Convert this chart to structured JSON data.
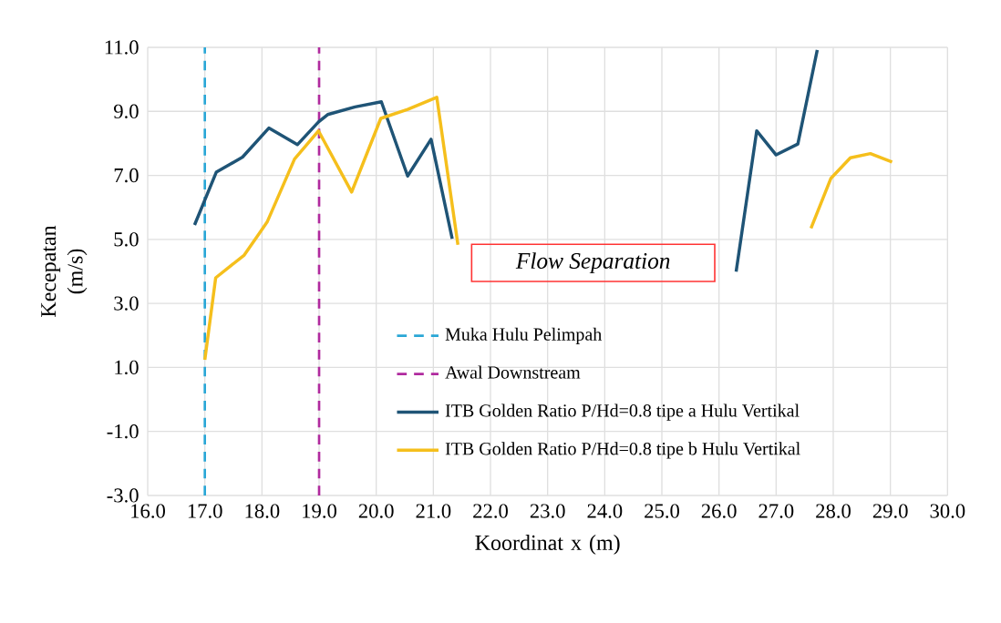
{
  "chart_data": {
    "type": "line",
    "xlabel": "Koordinat x (m)",
    "ylabel": "Kecepatan (m/s)",
    "xlim": [
      16,
      30
    ],
    "ylim": [
      -3,
      11
    ],
    "xticks": [
      {
        "value": 16,
        "label": "16.0"
      },
      {
        "value": 17,
        "label": "17.0"
      },
      {
        "value": 18,
        "label": "18.0"
      },
      {
        "value": 19,
        "label": "19.0"
      },
      {
        "value": 20,
        "label": "20.0"
      },
      {
        "value": 21,
        "label": "21.0"
      },
      {
        "value": 22,
        "label": "22.0"
      },
      {
        "value": 23,
        "label": "23.0"
      },
      {
        "value": 24,
        "label": "24.0"
      },
      {
        "value": 25,
        "label": "25.0"
      },
      {
        "value": 26,
        "label": "26.0"
      },
      {
        "value": 27,
        "label": "27.0"
      },
      {
        "value": 28,
        "label": "28.0"
      },
      {
        "value": 29,
        "label": "29.0"
      },
      {
        "value": 30,
        "label": "30.0"
      }
    ],
    "yticks": [
      {
        "value": -3,
        "label": "-3.0"
      },
      {
        "value": -1,
        "label": "-1.0"
      },
      {
        "value": 1,
        "label": "1.0"
      },
      {
        "value": 3,
        "label": "3.0"
      },
      {
        "value": 5,
        "label": "5.0"
      },
      {
        "value": 7,
        "label": "7.0"
      },
      {
        "value": 9,
        "label": "9.0"
      },
      {
        "value": 11,
        "label": "11.0"
      }
    ],
    "grid": true,
    "legend": "bottom right",
    "marker": "none",
    "line_style": "solid",
    "series": [
      {
        "name": "Muka Hulu Pelimpah",
        "color": "#2aa7d6",
        "line_style": "dashed",
        "x": [
          17,
          17
        ],
        "values": [
          -3,
          11
        ]
      },
      {
        "name": "Awal Downstream",
        "color": "#b02a9e",
        "line_style": "dashed",
        "x": [
          19,
          19
        ],
        "values": [
          -3,
          11
        ]
      },
      {
        "name": "ITB Golden Ratio P/Hd=0.8 tipe a Hulu Vertikal",
        "color": "#1f5476",
        "x": [
          16.82,
          17.2,
          17.66,
          18.12,
          18.62,
          18.99,
          19.15,
          19.63,
          20.09,
          20.55,
          20.96,
          21.33,
          null,
          26.3,
          26.66,
          27.0,
          27.38,
          27.72
        ],
        "values": [
          5.45,
          7.1,
          7.57,
          8.48,
          7.96,
          8.67,
          8.9,
          9.14,
          9.3,
          6.98,
          8.13,
          5.02,
          null,
          3.99,
          8.39,
          7.64,
          7.98,
          10.92
        ]
      },
      {
        "name": "ITB Golden Ratio P/Hd=0.8 tipe b Hulu Vertikal",
        "color": "#f5bf1c",
        "x": [
          17.0,
          17.19,
          17.69,
          18.09,
          18.57,
          18.99,
          19.57,
          20.08,
          20.55,
          21.06,
          21.43,
          null,
          27.61,
          27.96,
          28.3,
          28.65,
          29.03
        ],
        "values": [
          1.24,
          3.8,
          4.51,
          5.54,
          7.51,
          8.39,
          6.48,
          8.78,
          9.06,
          9.44,
          4.83,
          null,
          5.35,
          6.91,
          7.55,
          7.68,
          7.42
        ]
      }
    ],
    "annotations": [
      "*Flow Separation*"
    ]
  }
}
